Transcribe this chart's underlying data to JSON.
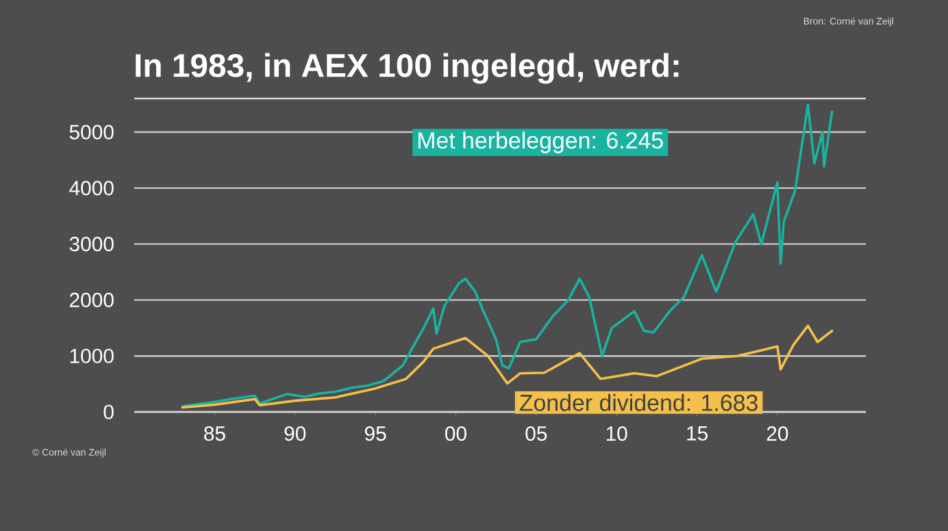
{
  "chart_data": {
    "type": "line",
    "title": "In 1983, in AEX 100 ingelegd, werd:",
    "annotations": [
      "Bron: Corné van Zeijl",
      "© Corné van Zeijl"
    ],
    "xlim": [
      1980,
      2025.5
    ],
    "xticks": [
      {
        "value": 1985,
        "label": "85"
      },
      {
        "value": 1990,
        "label": "90"
      },
      {
        "value": 1995,
        "label": "95"
      },
      {
        "value": 2000,
        "label": "00"
      },
      {
        "value": 2005,
        "label": "05"
      },
      {
        "value": 2010,
        "label": "10"
      },
      {
        "value": 2015,
        "label": "15"
      },
      {
        "value": 2020,
        "label": "20"
      }
    ],
    "ylim": [
      0,
      5600
    ],
    "yticks": [
      0,
      1000,
      2000,
      3000,
      4000,
      5000
    ],
    "grid": "y",
    "legend": false,
    "marker": "none",
    "line_style": "solid",
    "series": [
      {
        "name": "Met herbeleggen: 6.245",
        "color": "#1ab3a0",
        "x": [
          1983.0,
          1984.0,
          1985.0,
          1986.0,
          1987.5,
          1987.8,
          1988.5,
          1989.5,
          1990.6,
          1991.5,
          1992.5,
          1993.5,
          1994.5,
          1995.5,
          1996.7,
          1997.5,
          1998.0,
          1998.6,
          1998.8,
          1999.3,
          2000.2,
          2000.6,
          2001.2,
          2001.7,
          2002.5,
          2002.9,
          2003.3,
          2004.0,
          2005.0,
          2006.0,
          2007.0,
          2007.7,
          2008.3,
          2009.1,
          2009.7,
          2011.1,
          2011.7,
          2012.3,
          2013.3,
          2014.2,
          2015.3,
          2016.2,
          2017.4,
          2018.5,
          2019.0,
          2020.0,
          2020.2,
          2020.4,
          2021.1,
          2021.9,
          2022.3,
          2022.8,
          2022.9,
          2023.4
        ],
        "values": [
          100,
          140,
          180,
          230,
          290,
          150,
          220,
          320,
          270,
          330,
          360,
          430,
          470,
          550,
          830,
          1250,
          1500,
          1850,
          1400,
          1900,
          2300,
          2380,
          2150,
          1810,
          1300,
          830,
          780,
          1250,
          1300,
          1700,
          2000,
          2380,
          2050,
          1000,
          1500,
          1800,
          1450,
          1420,
          1800,
          2060,
          2800,
          2150,
          3040,
          3530,
          3000,
          4100,
          2650,
          3400,
          3950,
          5490,
          4440,
          5000,
          4390,
          5370
        ]
      },
      {
        "name": "Zonder dividend: 1.683",
        "color": "#f5c04a",
        "x": [
          1983.0,
          1985.0,
          1987.5,
          1987.8,
          1990.0,
          1992.5,
          1995.0,
          1996.9,
          1998.0,
          1998.6,
          2000.6,
          2002.0,
          2003.2,
          2004.0,
          2005.5,
          2007.7,
          2009.0,
          2011.1,
          2012.5,
          2015.3,
          2017.5,
          2019.0,
          2020.0,
          2020.2,
          2021.0,
          2021.9,
          2022.5,
          2023.4
        ],
        "values": [
          80,
          130,
          230,
          120,
          200,
          260,
          420,
          590,
          900,
          1130,
          1320,
          1000,
          510,
          690,
          700,
          1050,
          590,
          690,
          640,
          950,
          1000,
          1100,
          1170,
          760,
          1200,
          1540,
          1250,
          1450
        ]
      }
    ]
  }
}
